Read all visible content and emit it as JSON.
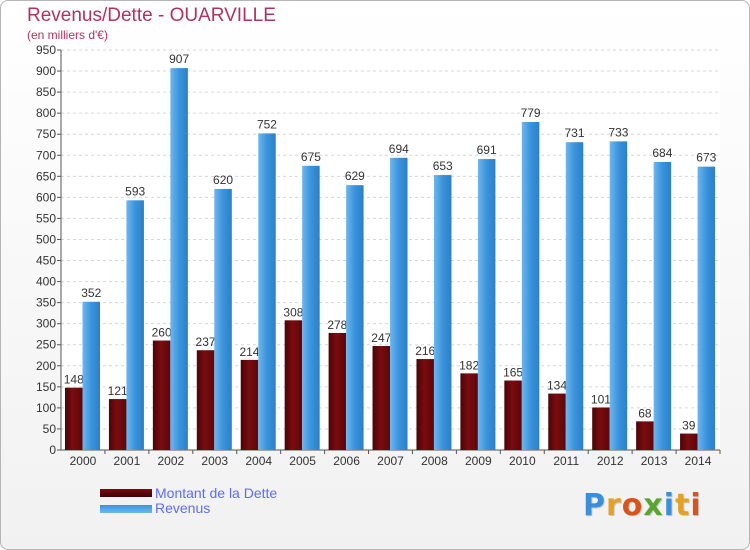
{
  "header": {
    "title": "Revenus/Dette - OUARVILLE",
    "subtitle": "(en milliers d'€)"
  },
  "colors": {
    "dette": "#7a0c10",
    "revenus": "#3a93dc",
    "title": "#b0335d",
    "legend_text": "#5d6ef1"
  },
  "legend": {
    "dette_label": "Montant de la Dette",
    "revenus_label": "Revenus"
  },
  "logo": {
    "text": "Proxiti",
    "colors": [
      "#3a8fd8",
      "#e2a127",
      "#d8541c",
      "#5aa52e",
      "#3a8fd8",
      "#e2a127",
      "#d8541c"
    ]
  },
  "chart_data": {
    "type": "bar",
    "categories": [
      "2000",
      "2001",
      "2002",
      "2003",
      "2004",
      "2005",
      "2006",
      "2007",
      "2008",
      "2009",
      "2010",
      "2011",
      "2012",
      "2013",
      "2014"
    ],
    "series": [
      {
        "name": "Montant de la Dette",
        "values": [
          148,
          121,
          260,
          237,
          214,
          308,
          278,
          247,
          216,
          182,
          165,
          134,
          101,
          68,
          39
        ]
      },
      {
        "name": "Revenus",
        "values": [
          352,
          593,
          907,
          620,
          752,
          675,
          629,
          694,
          653,
          691,
          779,
          731,
          733,
          684,
          673
        ]
      }
    ],
    "ylim": [
      0,
      950
    ],
    "ytick_step": 50,
    "grid": true,
    "legend_position": "bottom-left"
  }
}
